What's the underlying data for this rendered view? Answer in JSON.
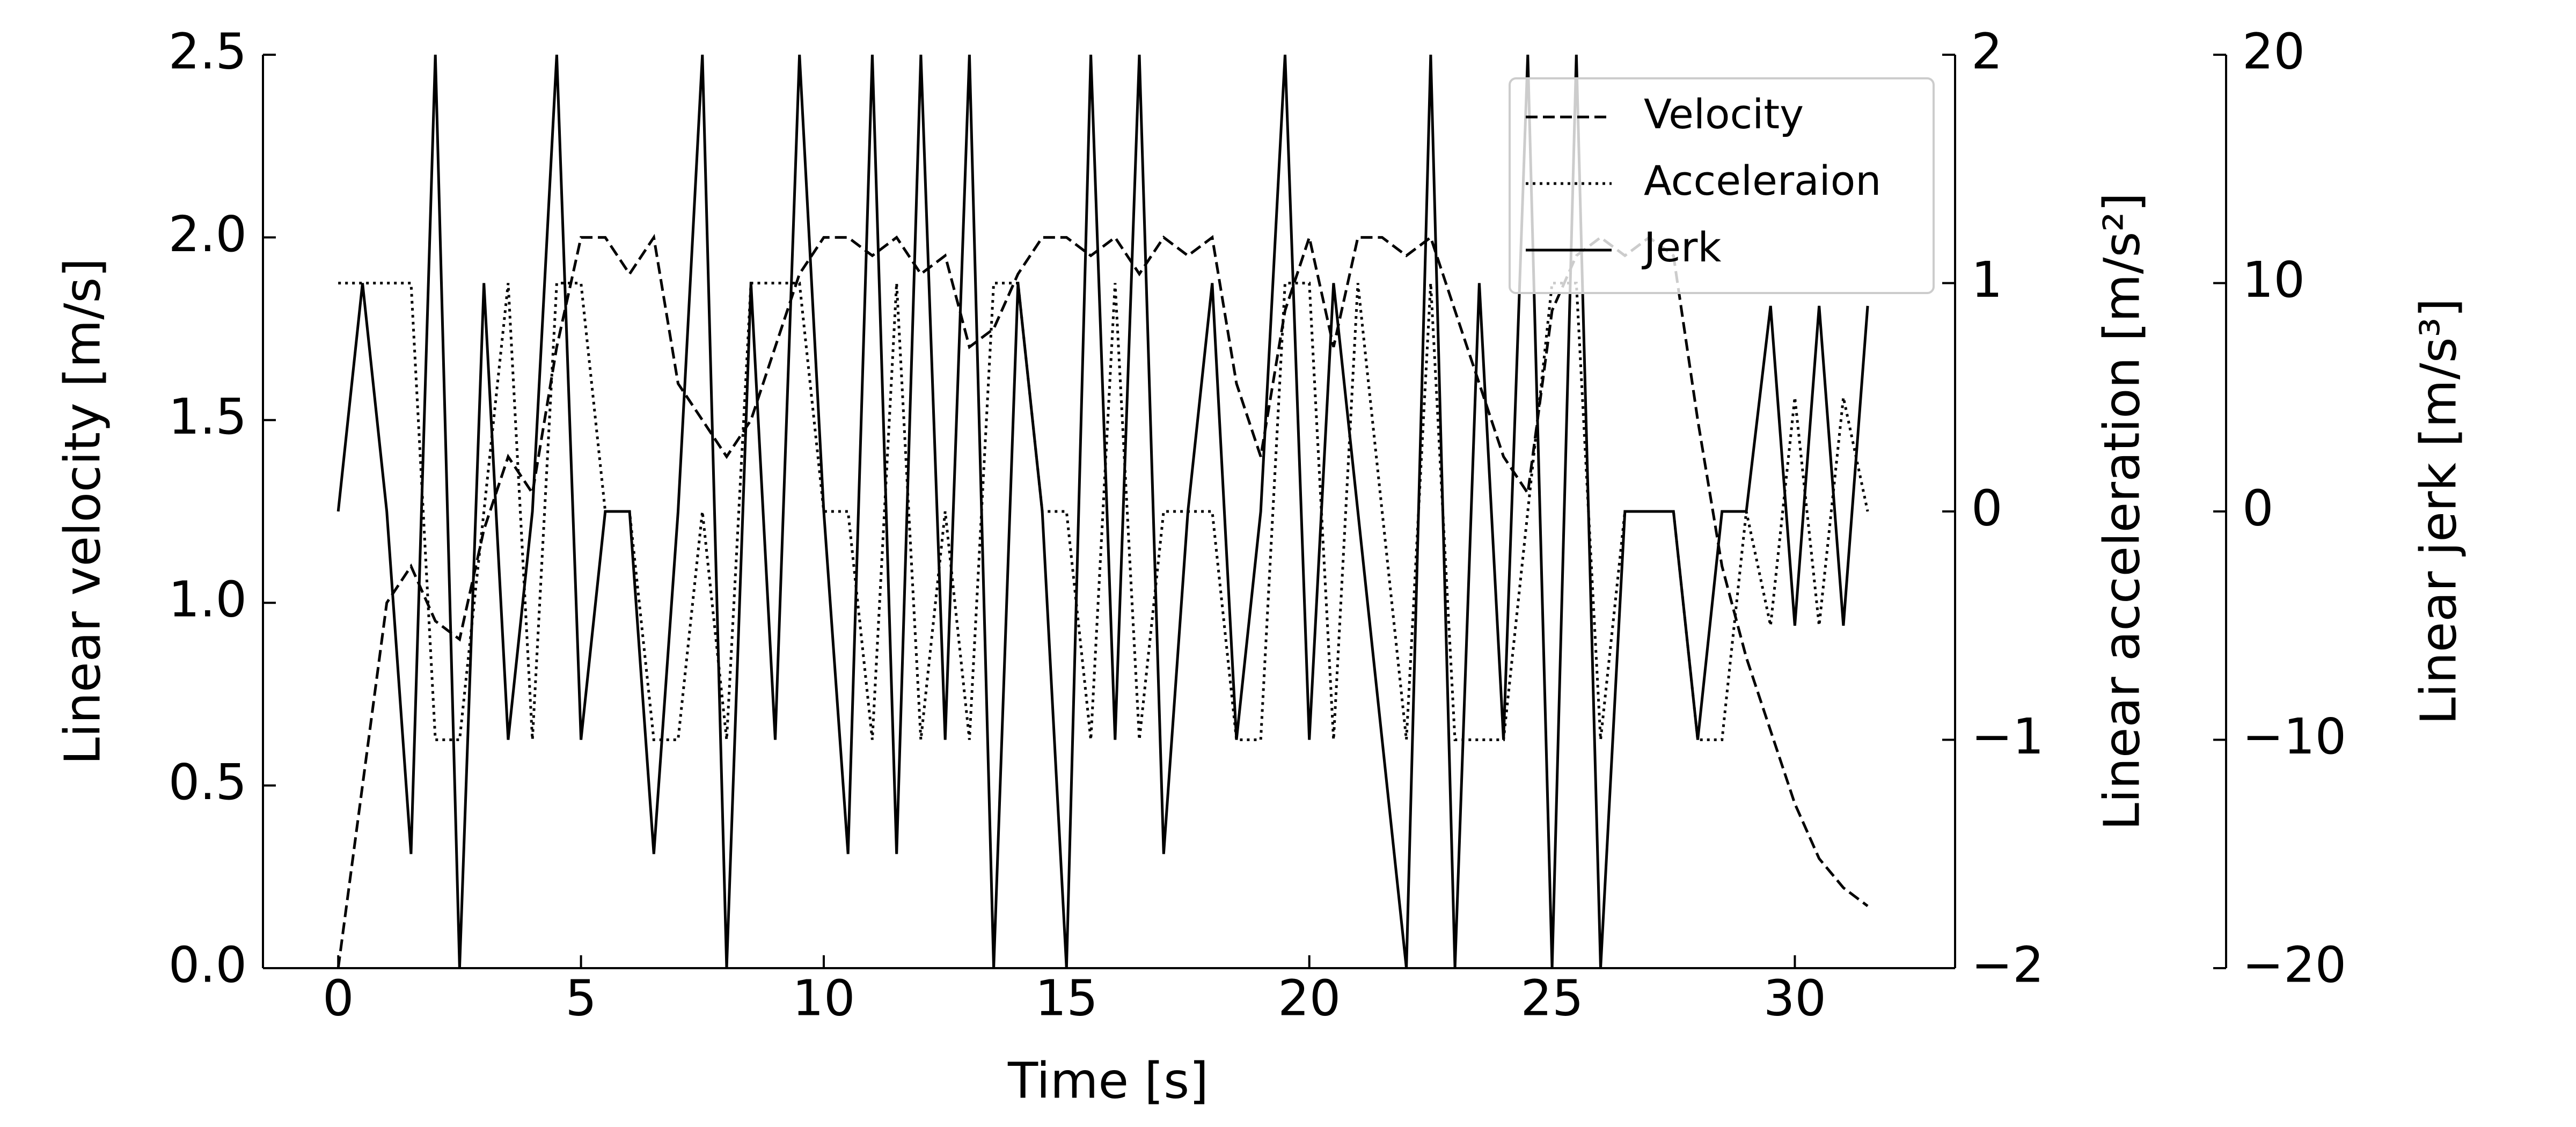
{
  "chart_data": {
    "type": "line",
    "xlabel": "Time [s]",
    "ylabel": "Linear velocity [m/s]",
    "y2label": "Linear acceleration [m/s²]",
    "y3label": "Linear jerk [m/s³]",
    "x": [
      0,
      0.5,
      1,
      1.5,
      2,
      2.5,
      3,
      3.5,
      4,
      4.5,
      5,
      5.5,
      6,
      6.5,
      7,
      7.5,
      8,
      8.5,
      9,
      9.5,
      10,
      10.5,
      11,
      11.5,
      12,
      12.5,
      13,
      13.5,
      14,
      14.5,
      15,
      15.5,
      16,
      16.5,
      17,
      17.5,
      18,
      18.5,
      19,
      19.5,
      20,
      20.5,
      21,
      21.5,
      22,
      22.5,
      23,
      23.5,
      24,
      24.5,
      25,
      25.5,
      26,
      26.5,
      27,
      27.5,
      28,
      28.5,
      29,
      29.5,
      30,
      30.5,
      31,
      31.5
    ],
    "series": [
      {
        "name": "Velocity",
        "color": "#000000",
        "linestyle": "dashed",
        "axis": "y",
        "values": [
          0,
          0.5,
          1.0,
          1.1,
          0.95,
          0.9,
          1.2,
          1.4,
          1.3,
          1.7,
          2.0,
          2.0,
          1.9,
          2.0,
          1.6,
          1.5,
          1.4,
          1.5,
          1.7,
          1.9,
          2.0,
          2.0,
          1.95,
          2.0,
          1.9,
          1.95,
          1.7,
          1.75,
          1.9,
          2.0,
          2.0,
          1.95,
          2.0,
          1.9,
          2.0,
          1.95,
          2.0,
          1.6,
          1.4,
          1.8,
          2.0,
          1.7,
          2.0,
          2.0,
          1.95,
          2.0,
          1.8,
          1.6,
          1.4,
          1.3,
          1.8,
          1.95,
          2.0,
          1.95,
          2.0,
          1.95,
          1.5,
          1.1,
          0.85,
          0.65,
          0.45,
          0.3,
          0.22,
          0.17
        ]
      },
      {
        "name": "Acceleraion",
        "color": "#000000",
        "linestyle": "dotted",
        "axis": "y2",
        "values": [
          1,
          1,
          1,
          1,
          -1,
          -1,
          0,
          1,
          -1,
          1,
          1,
          0,
          0,
          -1,
          -1,
          0,
          -1,
          1,
          1,
          1,
          0,
          0,
          -1,
          1,
          -1,
          0,
          -1,
          1,
          1,
          0,
          0,
          -1,
          1,
          -1,
          0,
          0,
          0,
          -1,
          -1,
          1,
          1,
          -1,
          1,
          0,
          -1,
          1,
          -1,
          -1,
          -1,
          0,
          1,
          1,
          -1,
          0,
          0,
          0,
          -1,
          -1,
          0,
          -0.5,
          0.5,
          -0.5,
          0.5,
          0
        ]
      },
      {
        "name": "Jerk",
        "color": "#000000",
        "linestyle": "solid",
        "axis": "y3",
        "values": [
          0,
          10,
          0,
          -15,
          20,
          -20,
          10,
          -10,
          0,
          20,
          -10,
          0,
          0,
          -15,
          0,
          20,
          -20,
          10,
          -10,
          20,
          0,
          -15,
          20,
          -15,
          20,
          -10,
          20,
          -20,
          10,
          0,
          -20,
          20,
          -10,
          20,
          -15,
          0,
          10,
          -10,
          0,
          20,
          -10,
          10,
          0,
          -10,
          -20,
          20,
          -20,
          10,
          -10,
          20,
          -20,
          20,
          -20,
          0,
          0,
          0,
          -10,
          0,
          0,
          9,
          -5,
          9,
          -5,
          9
        ]
      }
    ],
    "xlim": [
      -1.55,
      33.3
    ],
    "xticks": [
      0,
      5,
      10,
      15,
      20,
      25,
      30
    ],
    "ylim": [
      0,
      2.5
    ],
    "yticks": [
      {
        "value": 0,
        "label": "0.0"
      },
      {
        "value": 0.5,
        "label": "0.5"
      },
      {
        "value": 1,
        "label": "1.0"
      },
      {
        "value": 1.5,
        "label": "1.5"
      },
      {
        "value": 2,
        "label": "2.0"
      },
      {
        "value": 2.5,
        "label": "2.5"
      }
    ],
    "y2lim": [
      -2,
      2
    ],
    "y2ticks": [
      {
        "value": -2,
        "label": "−2"
      },
      {
        "value": -1,
        "label": "−1"
      },
      0,
      1,
      2
    ],
    "y3lim": [
      -20,
      20
    ],
    "y3ticks": [
      {
        "value": -20,
        "label": "−20"
      },
      {
        "value": -10,
        "label": "−10"
      },
      0,
      10,
      20
    ],
    "legend": "upper right"
  }
}
